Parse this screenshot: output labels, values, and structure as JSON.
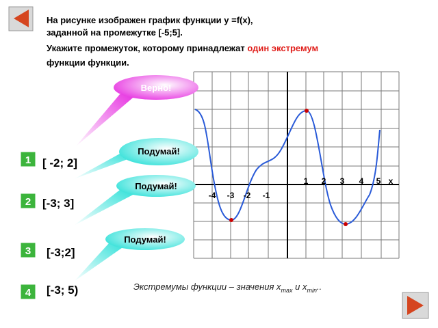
{
  "question": {
    "line1": "На рисунке изображен график функции y =f(x),",
    "line2": "заданной на промежутке [-5;5].",
    "line3_start": "Укажите промежуток, которому принадлежат",
    "line3_highlight": "один экстремум",
    "line4": "функции функции."
  },
  "feedback": [
    "Верно!",
    "Подумай!",
    "Подумай!",
    "Подумай!"
  ],
  "options": [
    {
      "number": "1",
      "label": "[ -2; 2]"
    },
    {
      "number": "2",
      "label": "[-3; 3]"
    },
    {
      "number": "3",
      "label": "[-3;2]"
    },
    {
      "number": "4",
      "label": "[-3; 5)"
    }
  ],
  "graph": {
    "positive_ticks": [
      "1",
      "2",
      "3",
      "4",
      "5"
    ],
    "x_label": "x",
    "negative_ticks": [
      "-4",
      "-3",
      "-2",
      "-1"
    ]
  },
  "note": {
    "text": "Экстремумы функции – значения x",
    "sub1": "max",
    "middle": " и x",
    "sub2": "min",
    "end": ".."
  }
}
